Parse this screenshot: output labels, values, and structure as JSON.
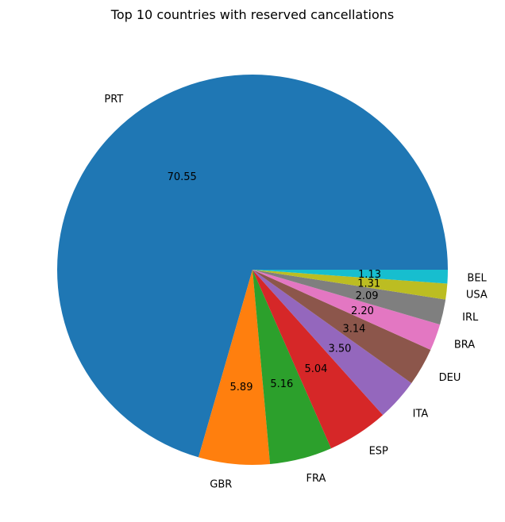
{
  "chart_data": {
    "type": "pie",
    "title": "Top 10 countries with reserved cancellations",
    "categories": [
      "PRT",
      "GBR",
      "FRA",
      "ESP",
      "ITA",
      "DEU",
      "BRA",
      "IRL",
      "USA",
      "BEL"
    ],
    "values": [
      70.55,
      5.89,
      5.16,
      5.04,
      3.5,
      3.14,
      2.2,
      2.09,
      1.31,
      1.13
    ],
    "value_labels": [
      "70.55",
      "5.89",
      "5.16",
      "5.04",
      "3.50",
      "3.14",
      "2.20",
      "2.09",
      "1.31",
      "1.13"
    ],
    "colors": [
      "#1f77b4",
      "#ff7f0e",
      "#2ca02c",
      "#d62728",
      "#9467bd",
      "#8c564b",
      "#e377c2",
      "#7f7f7f",
      "#bcbd22",
      "#17becf"
    ],
    "start_angle": "0 degrees (3 o'clock)",
    "direction": "counterclockwise",
    "legend": "none"
  }
}
